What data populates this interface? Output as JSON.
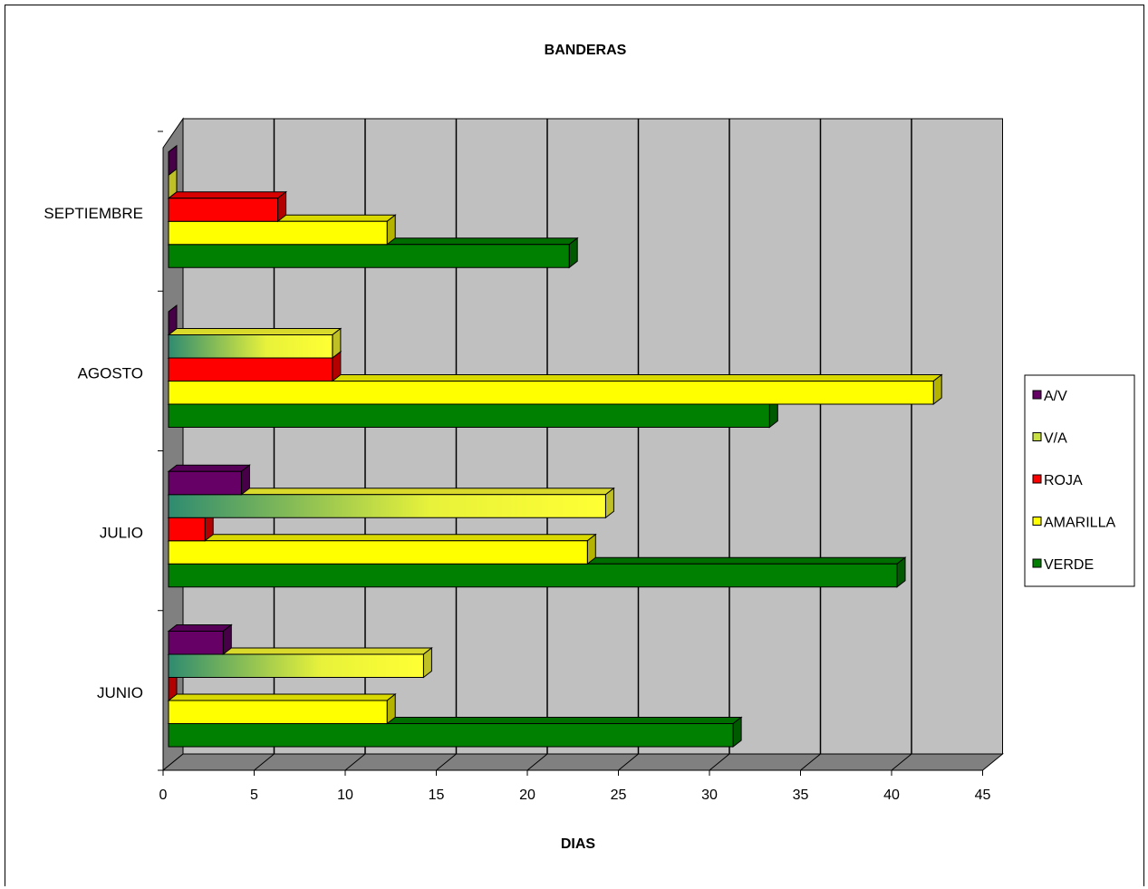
{
  "chart_data": {
    "type": "bar",
    "orientation": "horizontal",
    "title": "BANDERAS",
    "xlabel": "DIAS",
    "ylabel": "",
    "xlim": [
      0,
      45
    ],
    "x_ticks": [
      "0",
      "5",
      "10",
      "15",
      "20",
      "25",
      "30",
      "35",
      "40",
      "45"
    ],
    "categories": [
      "JUNIO",
      "JULIO",
      "AGOSTO",
      "SEPTIEMBRE"
    ],
    "series": [
      {
        "name": "VERDE",
        "color": "#008000",
        "values": [
          31,
          40,
          33,
          22
        ]
      },
      {
        "name": "AMARILLA",
        "color": "#ffff00",
        "values": [
          12,
          23,
          42,
          12
        ]
      },
      {
        "name": "ROJA",
        "color": "#ff0000",
        "values": [
          0,
          2,
          9,
          6
        ]
      },
      {
        "name": "V/A",
        "color": "#c8e040",
        "gradient": [
          "#2e8b70",
          "#ffff33"
        ],
        "values": [
          14,
          24,
          9,
          0
        ]
      },
      {
        "name": "A/V",
        "color": "#660066",
        "values": [
          3,
          4,
          0,
          0
        ]
      }
    ],
    "legend_order": [
      "A/V",
      "V/A",
      "ROJA",
      "AMARILLA",
      "VERDE"
    ],
    "legend_position": "right",
    "grid": true,
    "style": "3d",
    "colors": {
      "wall": "#c0c0c0",
      "floor": "#808080",
      "side_wall": "#808080"
    }
  }
}
